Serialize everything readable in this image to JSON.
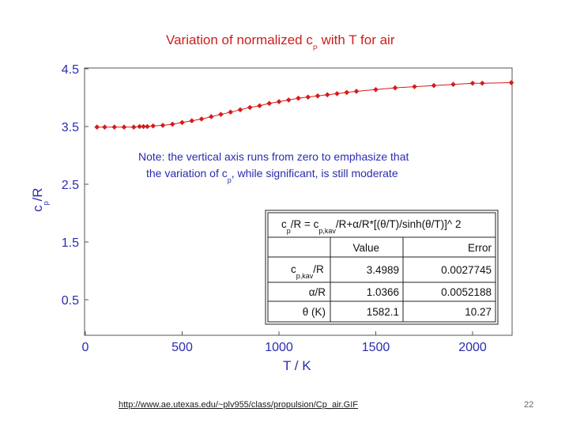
{
  "chart_data": {
    "type": "scatter",
    "title": "Variation of normalized c",
    "title_sub": "P",
    "title_suffix": " with T for air",
    "xlabel": "T / K",
    "ylabel": "c",
    "ylabel_sub": "p",
    "ylabel_suffix": "/R",
    "xlim": [
      0,
      2200
    ],
    "ylim": [
      0,
      4.5
    ],
    "x_ticks": [
      0,
      500,
      1000,
      1500,
      2000
    ],
    "y_ticks": [
      4.5,
      3.5,
      2.5,
      1.5,
      0.5
    ],
    "grid": false,
    "marker_color": "#d71a1a",
    "line_color": "#d71a1a",
    "axis_text_color": "#2b2bb0",
    "points": [
      {
        "x": 60,
        "y": 3.49
      },
      {
        "x": 100,
        "y": 3.49
      },
      {
        "x": 150,
        "y": 3.49
      },
      {
        "x": 200,
        "y": 3.49
      },
      {
        "x": 250,
        "y": 3.49
      },
      {
        "x": 280,
        "y": 3.5
      },
      {
        "x": 300,
        "y": 3.5
      },
      {
        "x": 320,
        "y": 3.5
      },
      {
        "x": 350,
        "y": 3.51
      },
      {
        "x": 400,
        "y": 3.52
      },
      {
        "x": 450,
        "y": 3.54
      },
      {
        "x": 500,
        "y": 3.57
      },
      {
        "x": 550,
        "y": 3.6
      },
      {
        "x": 600,
        "y": 3.63
      },
      {
        "x": 650,
        "y": 3.67
      },
      {
        "x": 700,
        "y": 3.71
      },
      {
        "x": 750,
        "y": 3.75
      },
      {
        "x": 800,
        "y": 3.79
      },
      {
        "x": 850,
        "y": 3.83
      },
      {
        "x": 900,
        "y": 3.86
      },
      {
        "x": 950,
        "y": 3.9
      },
      {
        "x": 1000,
        "y": 3.93
      },
      {
        "x": 1050,
        "y": 3.96
      },
      {
        "x": 1100,
        "y": 3.99
      },
      {
        "x": 1150,
        "y": 4.01
      },
      {
        "x": 1200,
        "y": 4.03
      },
      {
        "x": 1250,
        "y": 4.05
      },
      {
        "x": 1300,
        "y": 4.07
      },
      {
        "x": 1350,
        "y": 4.09
      },
      {
        "x": 1400,
        "y": 4.11
      },
      {
        "x": 1500,
        "y": 4.14
      },
      {
        "x": 1600,
        "y": 4.17
      },
      {
        "x": 1700,
        "y": 4.19
      },
      {
        "x": 1800,
        "y": 4.21
      },
      {
        "x": 1900,
        "y": 4.23
      },
      {
        "x": 2000,
        "y": 4.25
      },
      {
        "x": 2050,
        "y": 4.25
      },
      {
        "x": 2200,
        "y": 4.26
      }
    ],
    "note_line1": "Note: the vertical axis runs from zero to emphasize that",
    "note_line2_pre": "the variation of c",
    "note_line2_sub": "p",
    "note_line2_post": ", while significant, is still moderate",
    "fit_table": {
      "equation": {
        "c": "c",
        "sub_p": "p",
        "mid": "/R = c",
        "sub_pkav": "p,kav",
        "rest": "/R+α/R*[(θ/T)/sinh(θ/T)]^ 2"
      },
      "headers": [
        "Value",
        "Error"
      ],
      "rows": [
        {
          "name": "c",
          "name_sub": "p,kav",
          "name_suffix": "/R",
          "value": "3.4989",
          "error": "0.0027745"
        },
        {
          "name": "α/R",
          "name_sub": "",
          "name_suffix": "",
          "value": "1.0366",
          "error": "0.0052188"
        },
        {
          "name": "θ (K)",
          "name_sub": "",
          "name_suffix": "",
          "value": "1582.1",
          "error": "10.27"
        }
      ]
    }
  },
  "footer": {
    "link": "http://www.ae.utexas.edu/~plv955/class/propulsion/Cp_air.GIF",
    "slide_number": "22"
  }
}
